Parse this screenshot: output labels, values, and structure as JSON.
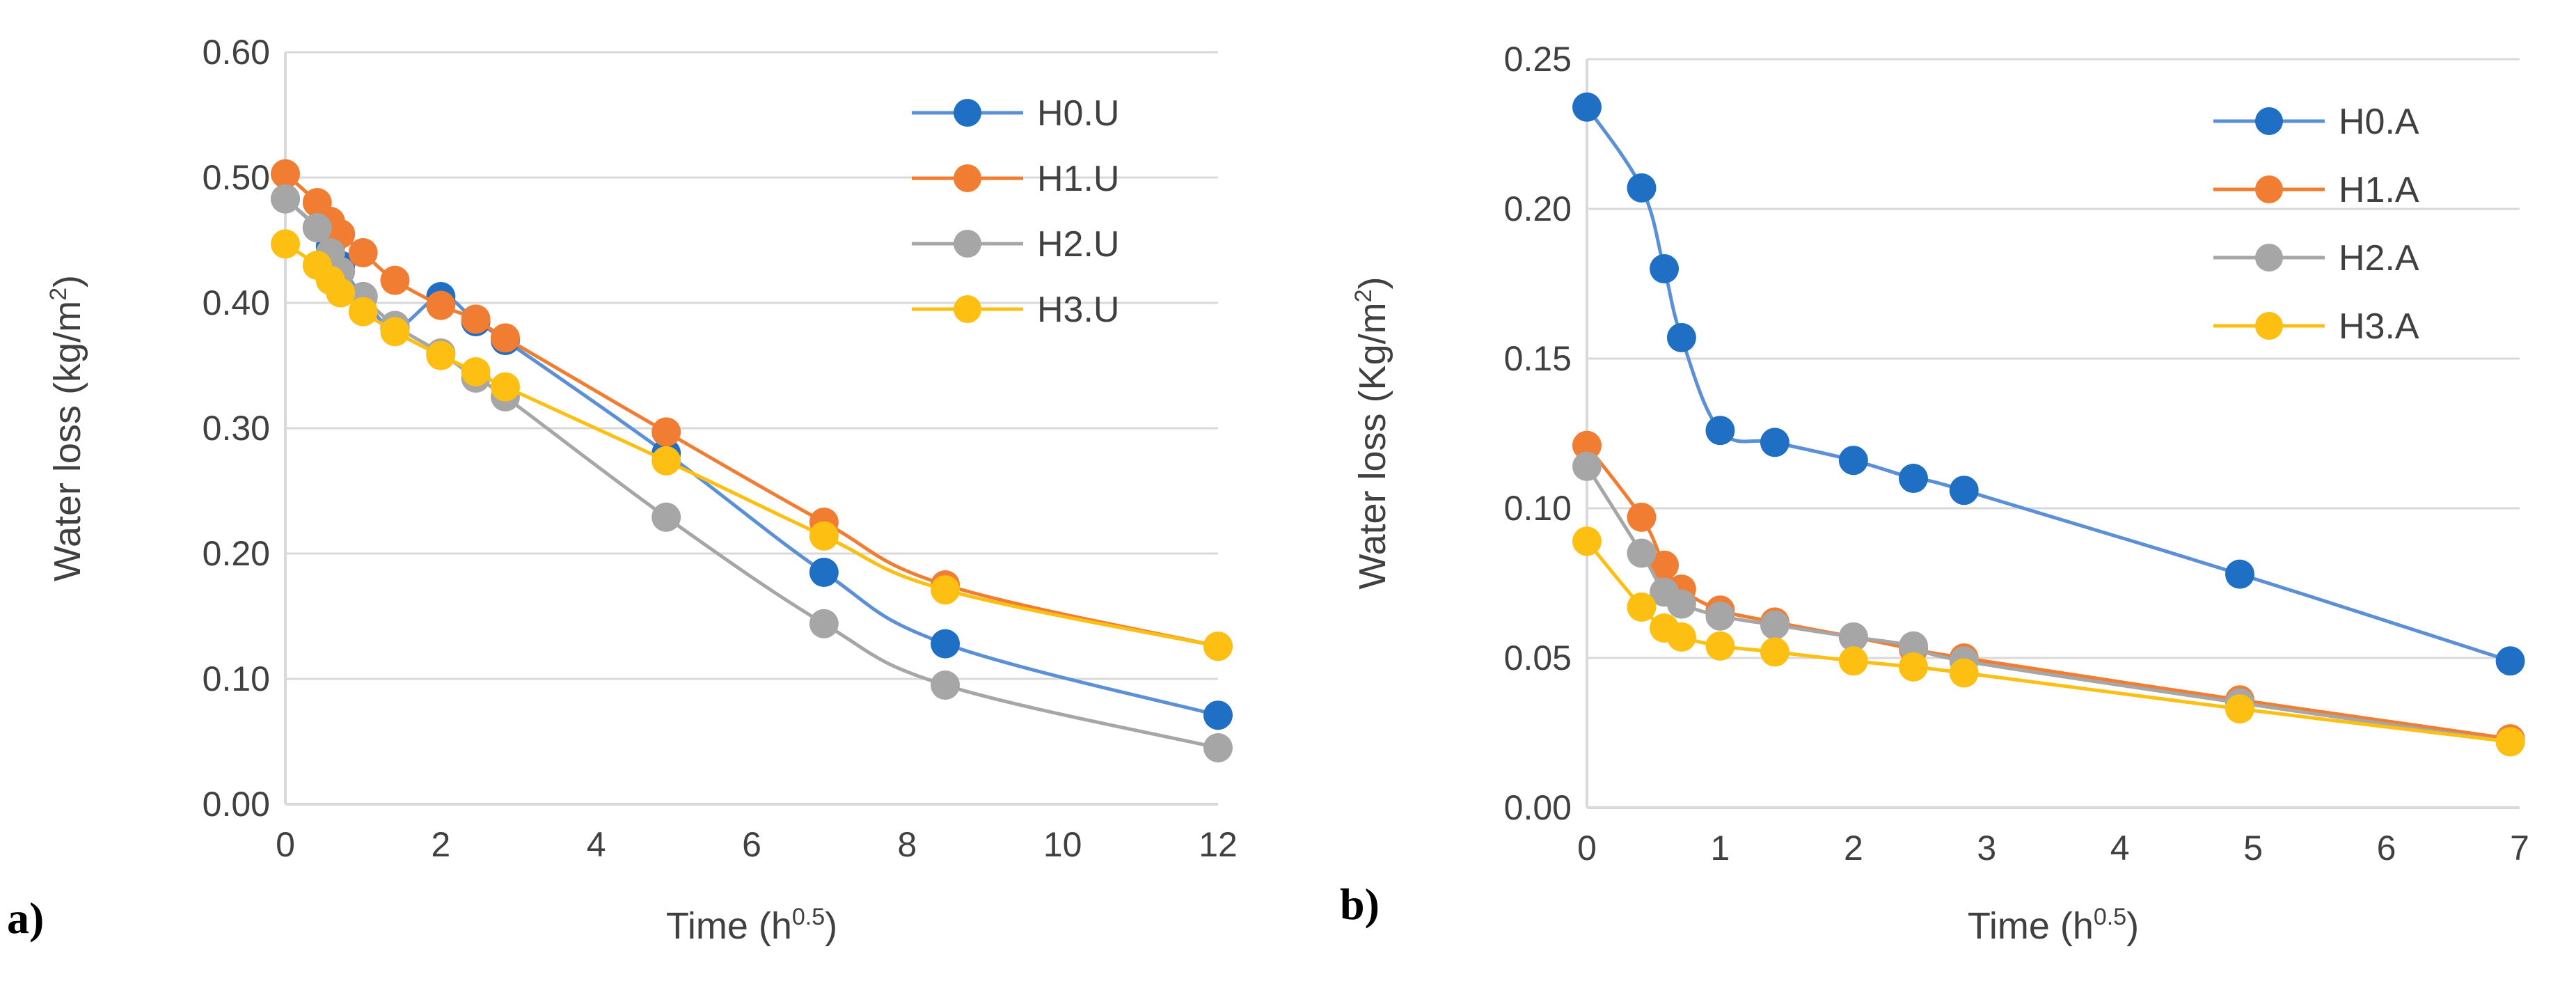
{
  "figure": {
    "colors": {
      "H0": "#1f6fc4",
      "H0_line": "#5b8fd6",
      "H1": "#f07d31",
      "H2": "#a6a6a6",
      "H3": "#fdbf12"
    }
  },
  "chart_data": [
    {
      "type": "line",
      "panel_label": "a)",
      "title": "",
      "xlabel": "Time (h",
      "xlabel_sup": "0.5",
      "xlabel_close": ")",
      "ylabel": "Water loss (kg/m",
      "ylabel_sup": "2",
      "ylabel_close": ")",
      "xlim": [
        0,
        12
      ],
      "ylim": [
        0,
        0.6
      ],
      "x_ticks": [
        "0",
        "2",
        "4",
        "6",
        "8",
        "10",
        "12"
      ],
      "y_ticks": [
        "0.00",
        "0.10",
        "0.20",
        "0.30",
        "0.40",
        "0.50",
        "0.60"
      ],
      "grid": "horizontal",
      "legend_position": "top-right",
      "series": [
        {
          "name": "H0.U",
          "color_key": "H0",
          "x": [
            0,
            0.41,
            0.58,
            0.71,
            1,
            1.41,
            2,
            2.45,
            2.83,
            4.9,
            6.93,
            8.49,
            12
          ],
          "y": [
            0.483,
            0.46,
            0.445,
            0.43,
            0.405,
            0.38,
            0.405,
            0.385,
            0.37,
            0.28,
            0.185,
            0.128,
            0.071
          ]
        },
        {
          "name": "H1.U",
          "color_key": "H1",
          "x": [
            0,
            0.41,
            0.58,
            0.71,
            1,
            1.41,
            2,
            2.45,
            2.83,
            4.9,
            6.93,
            8.49,
            12
          ],
          "y": [
            0.503,
            0.48,
            0.465,
            0.455,
            0.44,
            0.418,
            0.398,
            0.387,
            0.372,
            0.297,
            0.225,
            0.175,
            0.126
          ]
        },
        {
          "name": "H2.U",
          "color_key": "H2",
          "x": [
            0,
            0.41,
            0.58,
            0.71,
            1,
            1.41,
            2,
            2.45,
            2.83,
            4.9,
            6.93,
            8.49,
            12
          ],
          "y": [
            0.483,
            0.46,
            0.44,
            0.425,
            0.405,
            0.382,
            0.36,
            0.34,
            0.325,
            0.229,
            0.144,
            0.095,
            0.045
          ]
        },
        {
          "name": "H3.U",
          "color_key": "H3",
          "x": [
            0,
            0.41,
            0.58,
            0.71,
            1,
            1.41,
            2,
            2.45,
            2.83,
            4.9,
            6.93,
            8.49,
            12
          ],
          "y": [
            0.447,
            0.43,
            0.418,
            0.408,
            0.393,
            0.377,
            0.358,
            0.345,
            0.333,
            0.274,
            0.214,
            0.171,
            0.126
          ]
        }
      ]
    },
    {
      "type": "line",
      "panel_label": "b)",
      "title": "",
      "xlabel": "Time (h",
      "xlabel_sup": "0.5",
      "xlabel_close": ")",
      "ylabel": "Water loss (Kg/m",
      "ylabel_sup": "2",
      "ylabel_close": ")",
      "xlim": [
        0,
        7
      ],
      "ylim": [
        0,
        0.25
      ],
      "x_ticks": [
        "0",
        "1",
        "2",
        "3",
        "4",
        "5",
        "6",
        "7"
      ],
      "y_ticks": [
        "0.00",
        "0.05",
        "0.10",
        "0.15",
        "0.20",
        "0.25"
      ],
      "grid": "horizontal",
      "legend_position": "top-right",
      "series": [
        {
          "name": "H0.A",
          "color_key": "H0",
          "x": [
            0,
            0.41,
            0.58,
            0.71,
            1,
            1.41,
            2,
            2.45,
            2.83,
            4.9,
            6.93
          ],
          "y": [
            0.234,
            0.207,
            0.18,
            0.157,
            0.126,
            0.122,
            0.116,
            0.11,
            0.106,
            0.078,
            0.049
          ]
        },
        {
          "name": "H1.A",
          "color_key": "H1",
          "x": [
            0,
            0.41,
            0.58,
            0.71,
            1,
            1.41,
            2,
            2.45,
            2.83,
            4.9,
            6.93
          ],
          "y": [
            0.121,
            0.097,
            0.081,
            0.073,
            0.066,
            0.062,
            0.057,
            0.053,
            0.05,
            0.036,
            0.023
          ]
        },
        {
          "name": "H2.A",
          "color_key": "H2",
          "x": [
            0,
            0.41,
            0.58,
            0.71,
            1,
            1.41,
            2,
            2.45,
            2.83,
            4.9,
            6.93
          ],
          "y": [
            0.114,
            0.085,
            0.072,
            0.068,
            0.064,
            0.061,
            0.057,
            0.054,
            0.049,
            0.035,
            0.022
          ]
        },
        {
          "name": "H3.A",
          "color_key": "H3",
          "x": [
            0,
            0.41,
            0.58,
            0.71,
            1,
            1.41,
            2,
            2.45,
            2.83,
            4.9,
            6.93
          ],
          "y": [
            0.089,
            0.067,
            0.06,
            0.057,
            0.054,
            0.052,
            0.049,
            0.047,
            0.045,
            0.033,
            0.022
          ]
        }
      ]
    }
  ]
}
